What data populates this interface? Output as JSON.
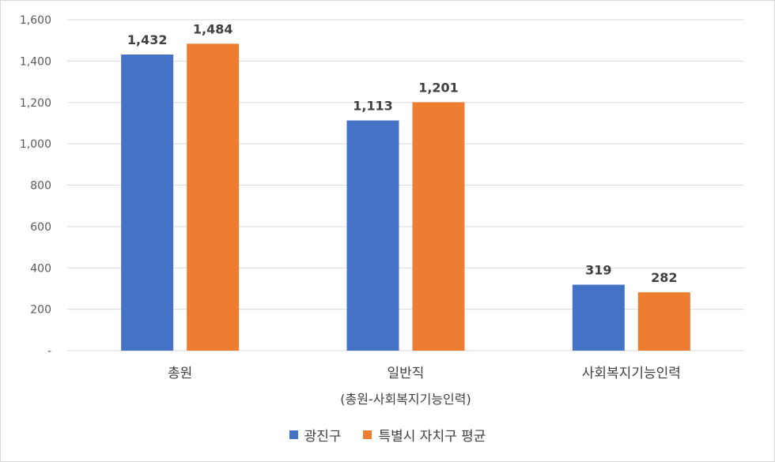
{
  "chart_data": {
    "type": "bar",
    "categories": [
      "총원",
      "일반직",
      "사회복지기능인력"
    ],
    "category_sublabels": [
      "",
      "(총원-사회복지기능인력)",
      ""
    ],
    "series": [
      {
        "name": "광진구",
        "values": [
          1432,
          1113,
          319
        ],
        "labels": [
          "1,432",
          "1,113",
          "319"
        ],
        "color": "#4472C4"
      },
      {
        "name": "특별시 자치구 평균",
        "values": [
          1484,
          1201,
          282
        ],
        "labels": [
          "1,484",
          "1,201",
          "282"
        ],
        "color": "#ED7D31"
      }
    ],
    "y_ticks": [
      0,
      200,
      400,
      600,
      800,
      1000,
      1200,
      1400,
      1600
    ],
    "y_tick_labels": [
      "-",
      "200",
      "400",
      "600",
      "800",
      "1,000",
      "1,200",
      "1,400",
      "1,600"
    ],
    "ylim": [
      0,
      1600
    ],
    "grid": true,
    "legend_position": "bottom"
  }
}
